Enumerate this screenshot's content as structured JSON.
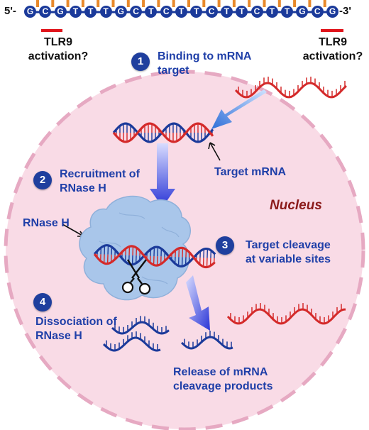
{
  "oligo": {
    "five_prime": "5'-",
    "three_prime": "-3'",
    "bases": [
      "G",
      "C",
      "G",
      "T",
      "T",
      "T",
      "G",
      "C",
      "T",
      "C",
      "T",
      "T",
      "C",
      "T",
      "T",
      "C",
      "T",
      "T",
      "G",
      "C",
      "G"
    ],
    "tlr9_left": [
      "TLR9",
      "activation?"
    ],
    "tlr9_right": [
      "TLR9",
      "activation?"
    ]
  },
  "nucleus_label": "Nucleus",
  "steps": [
    {
      "number": "1",
      "lines": [
        "Binding to mRNA",
        "target"
      ]
    },
    {
      "number": "2",
      "lines": [
        "Recruitment of",
        "RNase H"
      ]
    },
    {
      "number": "3",
      "lines": [
        "Target cleavage",
        "at variable sites"
      ]
    },
    {
      "number": "4",
      "lines": [
        "Dissociation of",
        "RNase H"
      ]
    }
  ],
  "labels": {
    "target_mrna": "Target mRNA",
    "rnase_h": "RNase H",
    "release": [
      "Release of mRNA",
      "cleavage products"
    ]
  },
  "colors": {
    "strand_blue": "#1b3a9a",
    "mrna_red": "#d42a2a",
    "tick_orange": "#e8892b",
    "nucleus_fill": "#f9dbe6",
    "nucleus_dash": "#e6a9c2",
    "rnase_fill": "#a9c6ea",
    "arrow_blue": "#2e3fc8",
    "step_badge": "#1f3f9e"
  }
}
